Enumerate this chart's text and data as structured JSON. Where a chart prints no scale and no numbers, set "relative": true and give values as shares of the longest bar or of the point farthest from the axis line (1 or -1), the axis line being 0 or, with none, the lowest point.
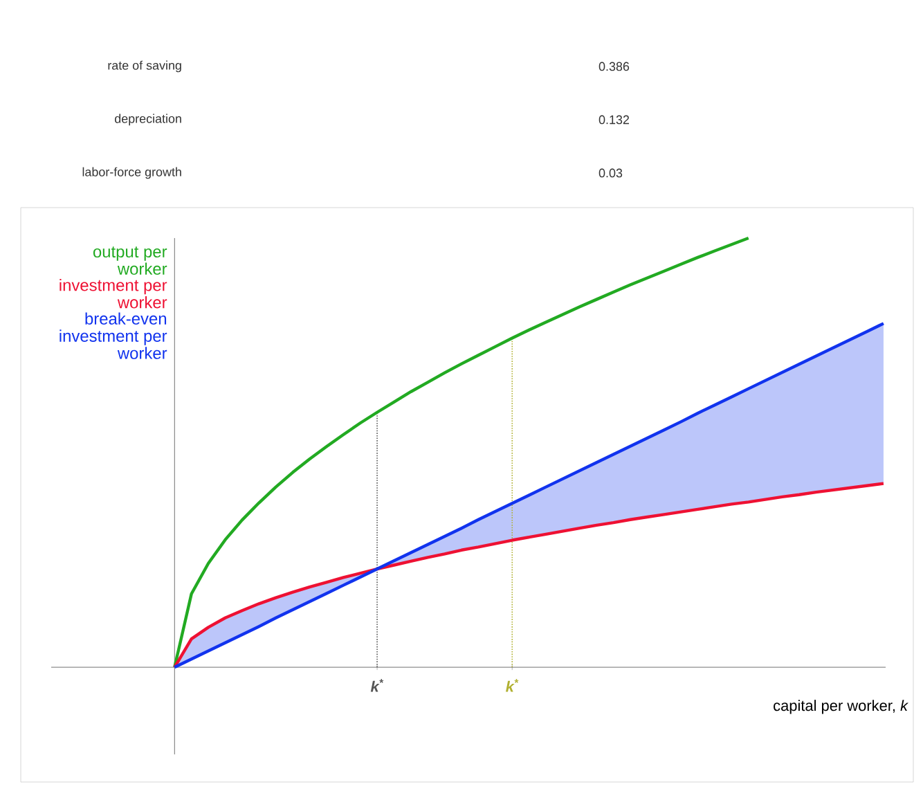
{
  "chart_data": {
    "type": "line",
    "relative": true,
    "xlabel": "capital per worker, *k*",
    "line_style": "solid",
    "marker": "none",
    "grid": false,
    "categories": [
      null,
      null,
      null,
      null,
      null,
      null,
      null,
      null,
      null,
      null,
      null,
      null,
      "k$^{*}$",
      null,
      null,
      null,
      null,
      null,
      null,
      null,
      "k$^{*}$",
      null,
      null,
      null,
      null,
      null,
      null,
      null,
      null,
      null,
      null,
      null,
      null,
      null,
      null,
      null,
      null,
      null,
      null,
      null,
      null,
      null,
      null
    ],
    "series": [
      {
        "name": "output per worker",
        "color": "#22aa22",
        "values": [
          0,
          0.171,
          0.242,
          0.297,
          0.343,
          0.383,
          0.42,
          0.454,
          0.485,
          0.514,
          0.542,
          0.569,
          0.594,
          0.618,
          0.642,
          0.664,
          0.686,
          0.707,
          0.727,
          0.747,
          0.767,
          0.786,
          0.804,
          0.822,
          0.84,
          0.857,
          0.874,
          0.891,
          0.907,
          0.923,
          0.939,
          0.955,
          0.97,
          0.985,
          1.0,
          null,
          null,
          null,
          null,
          null,
          null,
          null,
          null
        ]
      },
      {
        "name": "investment per worker",
        "color": "#ee1133",
        "values": [
          0,
          0.066,
          0.093,
          0.115,
          0.132,
          0.148,
          0.162,
          0.175,
          0.187,
          0.198,
          0.209,
          0.219,
          0.229,
          0.238,
          0.247,
          0.256,
          0.264,
          0.273,
          0.28,
          0.288,
          0.296,
          0.303,
          0.31,
          0.317,
          0.324,
          0.331,
          0.337,
          0.344,
          0.35,
          0.356,
          0.362,
          0.368,
          0.374,
          0.38,
          0.385,
          0.391,
          0.397,
          0.402,
          0.408,
          0.413,
          0.418,
          0.423,
          0.428
        ]
      },
      {
        "name": "break-even investment per worker",
        "color": "#1133ee",
        "values": [
          0,
          0.019,
          0.038,
          0.057,
          0.076,
          0.095,
          0.115,
          0.134,
          0.153,
          0.172,
          0.191,
          0.21,
          0.229,
          0.248,
          0.267,
          0.286,
          0.305,
          0.324,
          0.344,
          0.363,
          0.382,
          0.401,
          0.42,
          0.439,
          0.458,
          0.477,
          0.496,
          0.515,
          0.534,
          0.553,
          0.572,
          0.592,
          0.611,
          0.63,
          0.649,
          0.668,
          0.687,
          0.706,
          0.725,
          0.744,
          0.763,
          0.782,
          0.801
        ],
        "lower": [
          0,
          0.019,
          0.038,
          0.057,
          0.076,
          0.095,
          0.115,
          0.134,
          0.153,
          0.172,
          0.191,
          0.21,
          0.229,
          0.238,
          0.247,
          0.256,
          0.264,
          0.273,
          0.28,
          0.288,
          0.296,
          0.303,
          0.31,
          0.317,
          0.324,
          0.331,
          0.337,
          0.344,
          0.35,
          0.356,
          0.362,
          0.368,
          0.374,
          0.38,
          0.385,
          0.391,
          0.397,
          0.402,
          0.408,
          0.413,
          0.418,
          0.423,
          0.428
        ],
        "upper": [
          0,
          0.066,
          0.093,
          0.115,
          0.132,
          0.148,
          0.162,
          0.175,
          0.187,
          0.198,
          0.209,
          0.219,
          0.229,
          0.248,
          0.267,
          0.286,
          0.305,
          0.324,
          0.344,
          0.363,
          0.382,
          0.401,
          0.42,
          0.439,
          0.458,
          0.477,
          0.496,
          0.515,
          0.534,
          0.553,
          0.572,
          0.592,
          0.611,
          0.63,
          0.649,
          0.668,
          0.687,
          0.706,
          0.725,
          0.744,
          0.763,
          0.782,
          0.801
        ]
      }
    ],
    "annotations": [
      "rate of saving",
      "0.386",
      "depreciation",
      "0.132",
      "labor-force growth",
      "0.03"
    ]
  }
}
